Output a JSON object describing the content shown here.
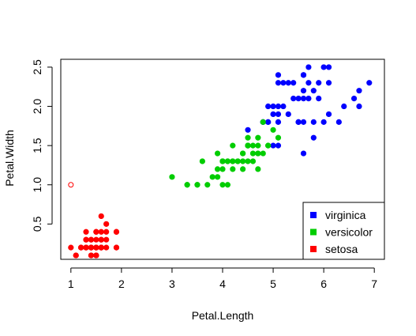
{
  "chart_data": {
    "type": "scatter",
    "title": "",
    "xlabel": "Petal.Length",
    "ylabel": "Petal.Width",
    "xlim": [
      0.8,
      7.2
    ],
    "ylim": [
      0.05,
      2.6
    ],
    "x_ticks": [
      "1",
      "2",
      "3",
      "4",
      "5",
      "6",
      "7"
    ],
    "y_ticks": [
      "0.5",
      "1.0",
      "1.5",
      "2.0",
      "2.5"
    ],
    "grid": false,
    "legend_position": "bottom-right",
    "series": [
      {
        "name": "virginica",
        "color": "#0000FF",
        "points": [
          [
            6.0,
            2.5
          ],
          [
            5.1,
            1.9
          ],
          [
            5.9,
            2.1
          ],
          [
            5.6,
            1.8
          ],
          [
            5.8,
            2.2
          ],
          [
            6.6,
            2.1
          ],
          [
            4.5,
            1.7
          ],
          [
            6.3,
            1.8
          ],
          [
            5.8,
            1.8
          ],
          [
            6.1,
            2.5
          ],
          [
            5.1,
            2.0
          ],
          [
            5.3,
            1.9
          ],
          [
            5.5,
            2.1
          ],
          [
            5.0,
            2.0
          ],
          [
            5.1,
            2.4
          ],
          [
            5.3,
            2.3
          ],
          [
            5.5,
            1.8
          ],
          [
            6.7,
            2.2
          ],
          [
            6.9,
            2.3
          ],
          [
            5.0,
            1.5
          ],
          [
            5.7,
            2.3
          ],
          [
            4.9,
            2.0
          ],
          [
            6.7,
            2.0
          ],
          [
            4.9,
            1.8
          ],
          [
            5.7,
            2.1
          ],
          [
            6.0,
            1.8
          ],
          [
            4.8,
            1.8
          ],
          [
            4.9,
            1.8
          ],
          [
            5.6,
            2.1
          ],
          [
            5.8,
            1.6
          ],
          [
            6.1,
            1.9
          ],
          [
            6.4,
            2.0
          ],
          [
            5.6,
            2.2
          ],
          [
            5.1,
            1.5
          ],
          [
            5.6,
            1.4
          ],
          [
            6.1,
            2.3
          ],
          [
            5.6,
            2.4
          ],
          [
            5.5,
            1.8
          ],
          [
            4.8,
            1.8
          ],
          [
            5.4,
            2.1
          ],
          [
            5.6,
            2.4
          ],
          [
            5.1,
            2.3
          ],
          [
            5.9,
            2.3
          ],
          [
            5.7,
            2.5
          ],
          [
            5.2,
            2.3
          ],
          [
            5.0,
            1.9
          ],
          [
            5.2,
            2.0
          ],
          [
            5.4,
            2.3
          ],
          [
            5.1,
            1.8
          ]
        ]
      },
      {
        "name": "versicolor",
        "color": "#00CD00",
        "points": [
          [
            4.7,
            1.4
          ],
          [
            4.5,
            1.5
          ],
          [
            4.9,
            1.5
          ],
          [
            4.0,
            1.3
          ],
          [
            4.6,
            1.5
          ],
          [
            4.5,
            1.3
          ],
          [
            4.7,
            1.6
          ],
          [
            3.3,
            1.0
          ],
          [
            4.6,
            1.3
          ],
          [
            3.9,
            1.4
          ],
          [
            3.5,
            1.0
          ],
          [
            4.2,
            1.5
          ],
          [
            4.0,
            1.0
          ],
          [
            4.7,
            1.4
          ],
          [
            3.6,
            1.3
          ],
          [
            4.4,
            1.4
          ],
          [
            4.5,
            1.5
          ],
          [
            4.1,
            1.0
          ],
          [
            4.5,
            1.5
          ],
          [
            3.9,
            1.1
          ],
          [
            4.8,
            1.8
          ],
          [
            4.0,
            1.3
          ],
          [
            4.9,
            1.5
          ],
          [
            4.7,
            1.2
          ],
          [
            4.3,
            1.3
          ],
          [
            4.4,
            1.4
          ],
          [
            4.8,
            1.4
          ],
          [
            5.0,
            1.7
          ],
          [
            4.5,
            1.5
          ],
          [
            3.5,
            1.0
          ],
          [
            3.8,
            1.1
          ],
          [
            3.7,
            1.0
          ],
          [
            3.9,
            1.2
          ],
          [
            5.1,
            1.6
          ],
          [
            4.5,
            1.5
          ],
          [
            4.5,
            1.6
          ],
          [
            4.7,
            1.5
          ],
          [
            4.4,
            1.3
          ],
          [
            4.1,
            1.3
          ],
          [
            4.0,
            1.3
          ],
          [
            4.4,
            1.2
          ],
          [
            4.6,
            1.4
          ],
          [
            4.0,
            1.2
          ],
          [
            3.3,
            1.0
          ],
          [
            4.2,
            1.3
          ],
          [
            4.2,
            1.2
          ],
          [
            4.2,
            1.3
          ],
          [
            4.3,
            1.3
          ],
          [
            3.0,
            1.1
          ],
          [
            4.1,
            1.3
          ]
        ]
      },
      {
        "name": "setosa",
        "color": "#FF0000",
        "points": [
          [
            1.4,
            0.2
          ],
          [
            1.3,
            0.2
          ],
          [
            1.5,
            0.2
          ],
          [
            1.7,
            0.4
          ],
          [
            1.4,
            0.3
          ],
          [
            1.5,
            0.1
          ],
          [
            1.4,
            0.2
          ],
          [
            1.1,
            0.1
          ],
          [
            1.2,
            0.2
          ],
          [
            1.5,
            0.4
          ],
          [
            1.3,
            0.4
          ],
          [
            1.4,
            0.3
          ],
          [
            1.7,
            0.3
          ],
          [
            1.5,
            0.3
          ],
          [
            1.7,
            0.2
          ],
          [
            1.5,
            0.4
          ],
          [
            1.0,
            0.2
          ],
          [
            1.9,
            0.2
          ],
          [
            1.6,
            0.2
          ],
          [
            1.6,
            0.4
          ],
          [
            1.5,
            0.2
          ],
          [
            1.4,
            0.2
          ],
          [
            1.6,
            0.2
          ],
          [
            1.5,
            0.2
          ],
          [
            1.4,
            0.2
          ],
          [
            1.5,
            0.1
          ],
          [
            1.3,
            0.2
          ],
          [
            1.5,
            0.2
          ],
          [
            1.3,
            0.3
          ],
          [
            1.3,
            0.3
          ],
          [
            1.6,
            0.6
          ],
          [
            1.9,
            0.4
          ],
          [
            1.6,
            0.3
          ],
          [
            1.4,
            0.2
          ],
          [
            1.5,
            0.2
          ],
          [
            1.4,
            0.2
          ],
          [
            1.6,
            0.2
          ],
          [
            1.9,
            0.4
          ],
          [
            1.6,
            0.3
          ],
          [
            1.5,
            0.1
          ],
          [
            1.2,
            0.2
          ],
          [
            1.3,
            0.2
          ],
          [
            1.7,
            0.5
          ],
          [
            1.6,
            0.2
          ],
          [
            1.4,
            0.1
          ],
          [
            1.1,
            0.1
          ],
          [
            1.2,
            0.2
          ],
          [
            1.3,
            0.2
          ],
          [
            1.4,
            0.1
          ],
          [
            1.9,
            0.2
          ]
        ]
      }
    ],
    "outliers": [
      {
        "x": 1.0,
        "y": 1.0,
        "color": "#FF0000",
        "style": "open-circle"
      }
    ]
  }
}
